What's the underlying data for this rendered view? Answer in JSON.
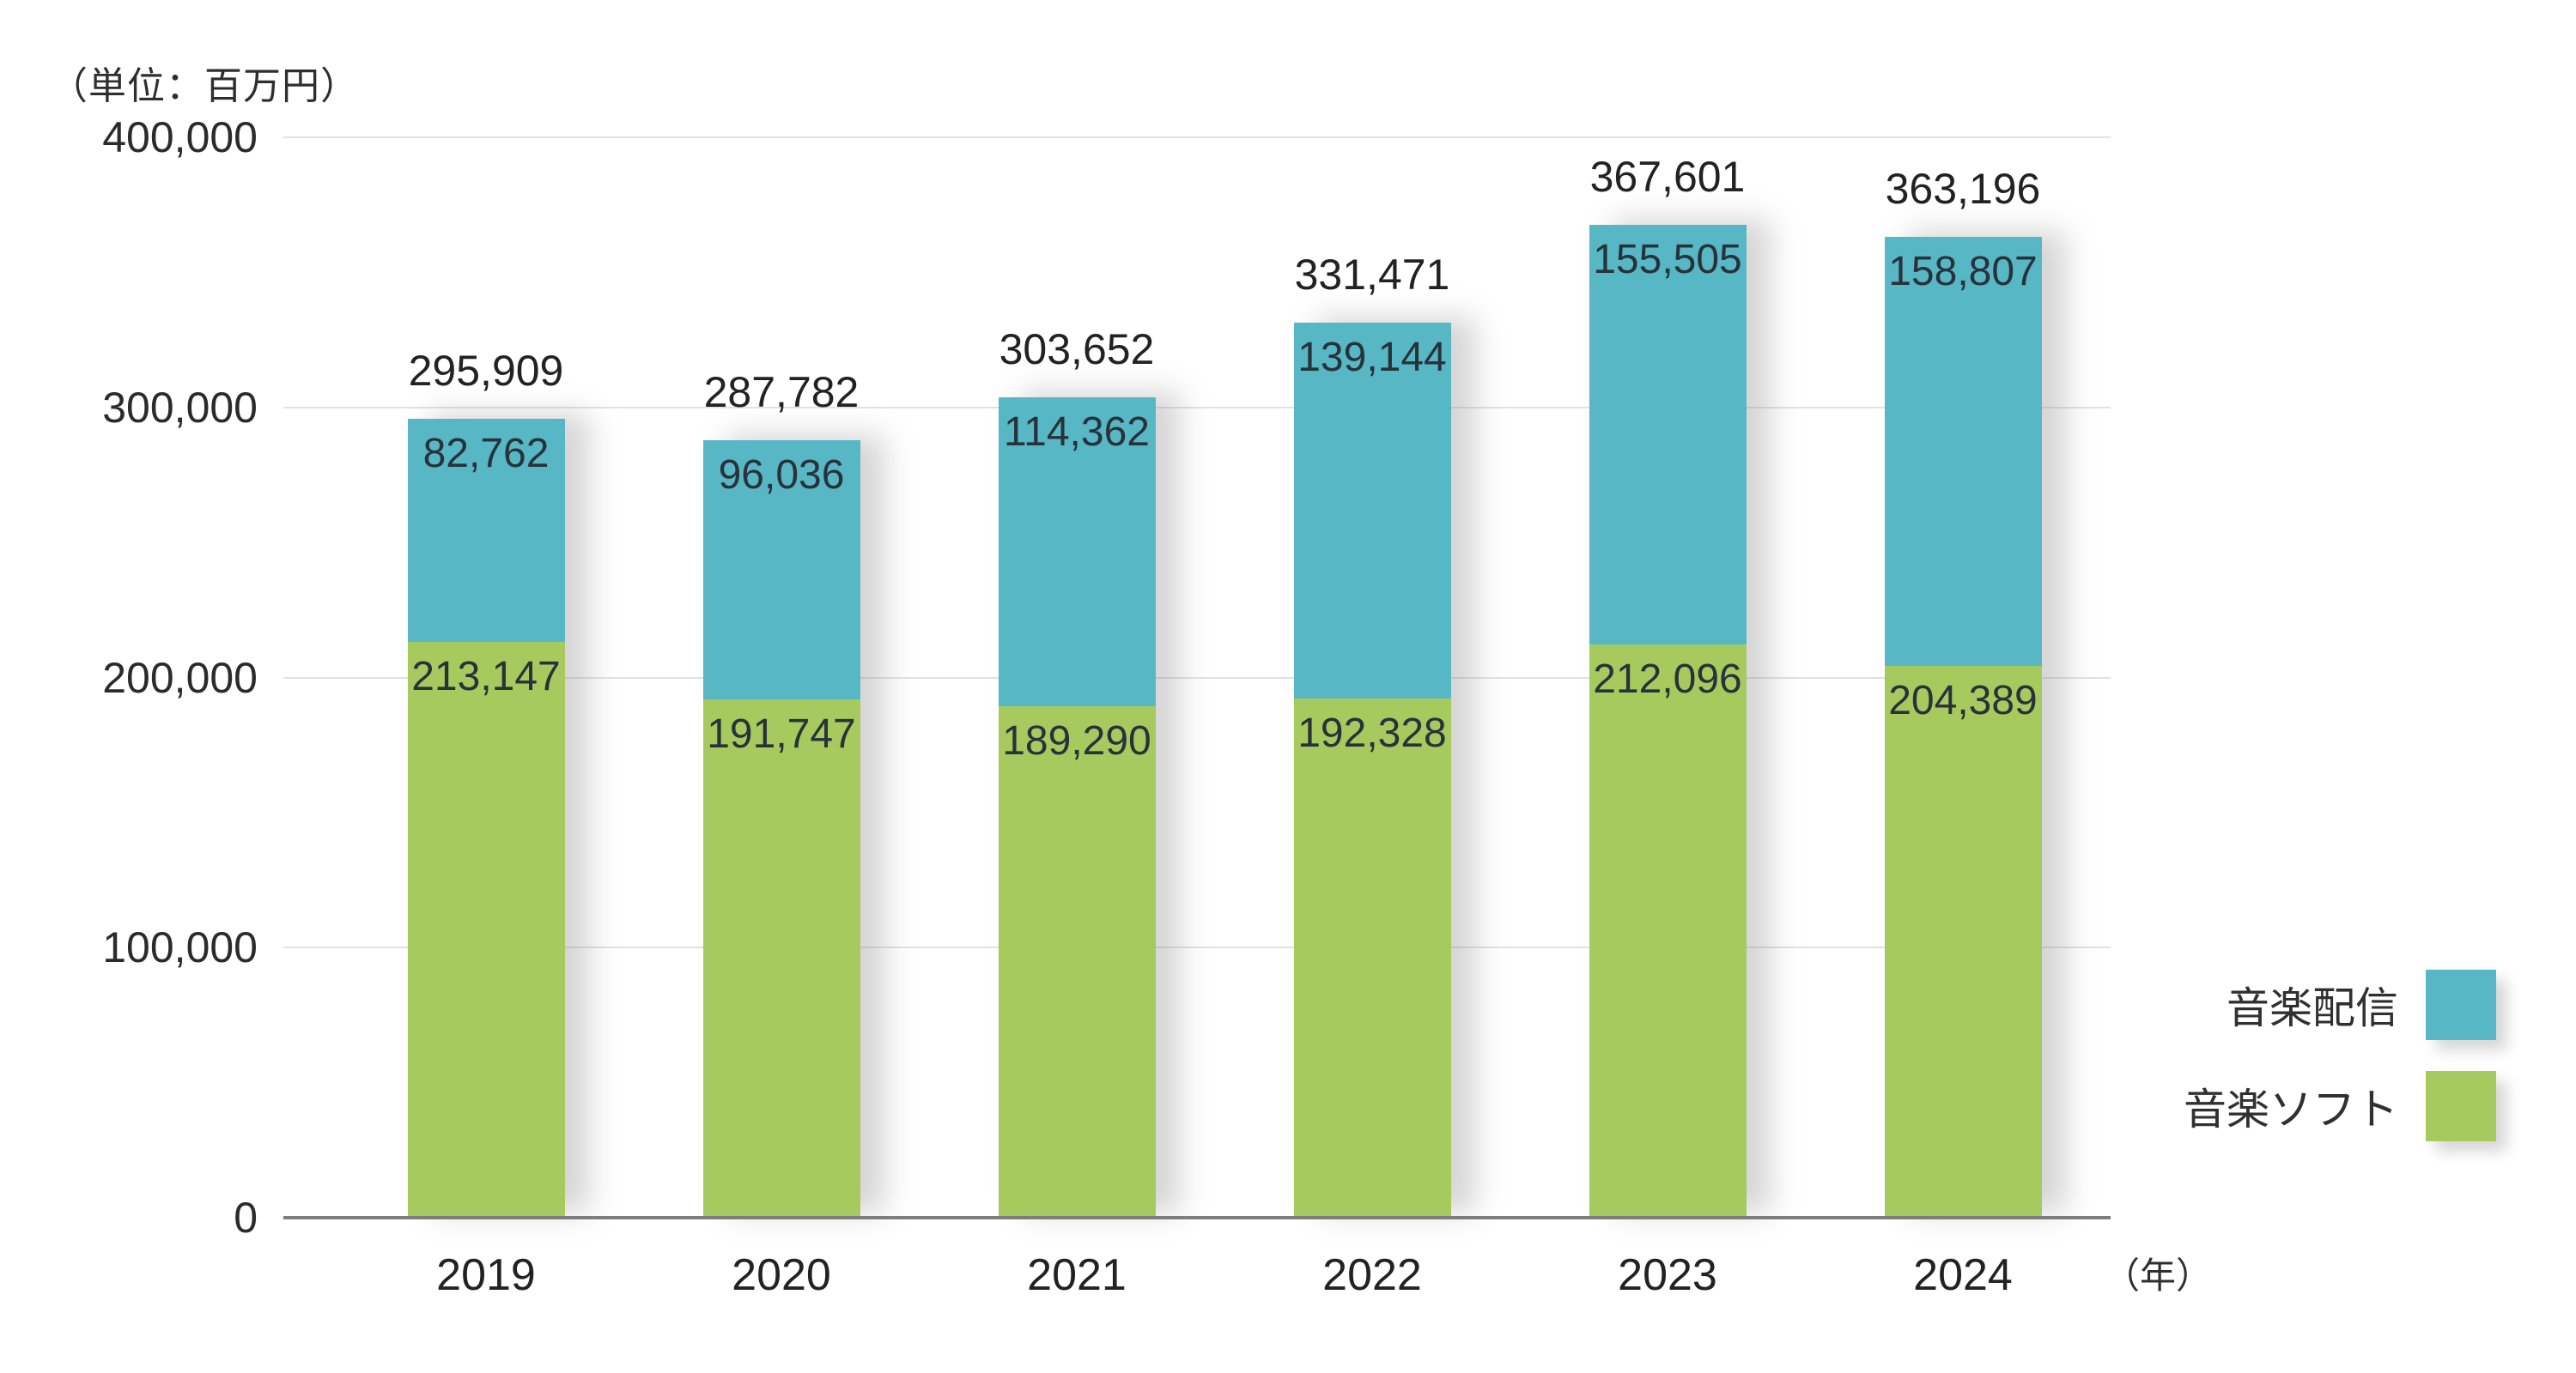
{
  "unit_label": "（単位：百万円）",
  "x_axis_unit_label": "（年）",
  "colors": {
    "music_distribution": "#57b7c5",
    "music_software": "#a7ca5e",
    "axis": "#7d7d7d",
    "gridline": "#e2e2e2",
    "label_text": "#222222"
  },
  "legend": [
    {
      "key": "music-distribution",
      "label": "音楽配信",
      "color": "#57b7c5"
    },
    {
      "key": "music-software",
      "label": "音楽ソフト",
      "color": "#a7ca5e"
    }
  ],
  "chart_data": {
    "type": "bar",
    "stacked": true,
    "title": "",
    "xlabel": "（年）",
    "ylabel": "（単位：百万円）",
    "categories": [
      "2019",
      "2020",
      "2021",
      "2022",
      "2023",
      "2024"
    ],
    "series": [
      {
        "key": "music-distribution",
        "name": "音楽配信",
        "color": "#57b7c5",
        "values": [
          82762,
          96036,
          114362,
          139144,
          155505,
          158807
        ]
      },
      {
        "key": "music-software",
        "name": "音楽ソフト",
        "color": "#a7ca5e",
        "values": [
          213147,
          191747,
          189290,
          192328,
          212096,
          204389
        ]
      }
    ],
    "totals": [
      295909,
      287782,
      303652,
      331471,
      367601,
      363196
    ],
    "ylim": [
      0,
      400000
    ],
    "ytick_interval": 100000,
    "ytick_labels": [
      "0",
      "100,000",
      "200,000",
      "300,000",
      "400,000"
    ],
    "grid": true,
    "legend_position": "right-bottom"
  }
}
